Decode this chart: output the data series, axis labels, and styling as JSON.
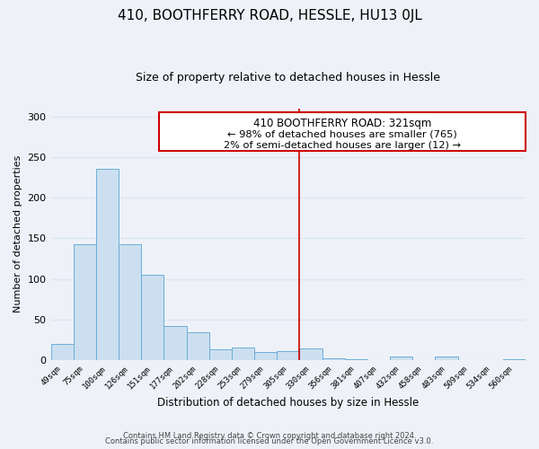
{
  "title": "410, BOOTHFERRY ROAD, HESSLE, HU13 0JL",
  "subtitle": "Size of property relative to detached houses in Hessle",
  "xlabel": "Distribution of detached houses by size in Hessle",
  "ylabel": "Number of detached properties",
  "bar_labels": [
    "49sqm",
    "75sqm",
    "100sqm",
    "126sqm",
    "151sqm",
    "177sqm",
    "202sqm",
    "228sqm",
    "253sqm",
    "279sqm",
    "305sqm",
    "330sqm",
    "356sqm",
    "381sqm",
    "407sqm",
    "432sqm",
    "458sqm",
    "483sqm",
    "509sqm",
    "534sqm",
    "560sqm"
  ],
  "bar_values": [
    20,
    143,
    236,
    143,
    105,
    42,
    34,
    13,
    15,
    10,
    11,
    14,
    2,
    1,
    0,
    4,
    0,
    4,
    0,
    0,
    1
  ],
  "bar_color": "#ccdff0",
  "bar_edge_color": "#6aaed6",
  "ylim": [
    0,
    310
  ],
  "yticks": [
    0,
    50,
    100,
    150,
    200,
    250,
    300
  ],
  "red_line_x": 10.5,
  "annotation_title": "410 BOOTHFERRY ROAD: 321sqm",
  "annotation_line1": "← 98% of detached houses are smaller (765)",
  "annotation_line2": "2% of semi-detached houses are larger (12) →",
  "footer1": "Contains HM Land Registry data © Crown copyright and database right 2024.",
  "footer2": "Contains public sector information licensed under the Open Government Licence v3.0.",
  "background_color": "#eef2f8",
  "grid_color": "#dce6f2",
  "title_fontsize": 11,
  "subtitle_fontsize": 9,
  "annotation_box_color": "#ffffff",
  "annotation_box_edge": "#cc0000"
}
